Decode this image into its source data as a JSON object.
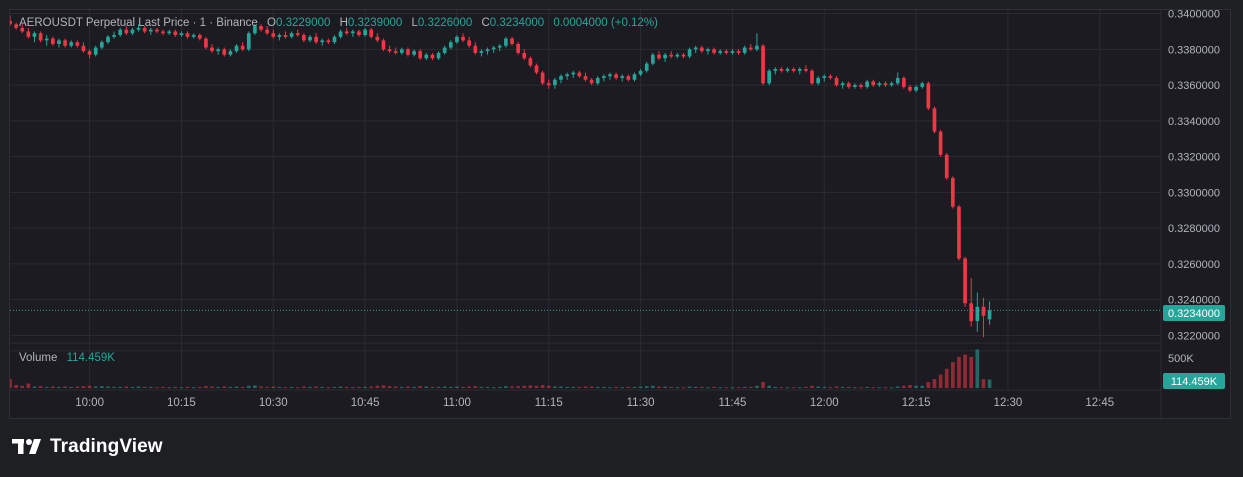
{
  "header": {
    "symbol": "AEROUSDT Perpetual Last Price · 1 · Binance",
    "o_label": "O",
    "o_value": "0.3229000",
    "h_label": "H",
    "h_value": "0.3239000",
    "l_label": "L",
    "l_value": "0.3226000",
    "c_label": "C",
    "c_value": "0.3234000",
    "change": "0.0004000 (+0.12%)"
  },
  "volume_pane": {
    "label": "Volume",
    "value": "114.459K",
    "scale_label": "500K",
    "badge": "114.459K"
  },
  "price_badge": "0.3234000",
  "branding": {
    "name": "TradingView",
    "logo": "tradingview-logo-icon"
  },
  "colors": {
    "background": "#1b1b21",
    "grid": "#2b2c33",
    "up": "#26a69a",
    "down": "#f23645",
    "text": "#b2b5be"
  },
  "chart_data": {
    "type": "candlestick",
    "interval_minutes": 1,
    "y_ticks": [
      "0.3400000",
      "0.3380000",
      "0.3360000",
      "0.3340000",
      "0.3320000",
      "0.3300000",
      "0.3280000",
      "0.3260000",
      "0.3240000",
      "0.3220000"
    ],
    "ylim": [
      0.3218,
      0.3402
    ],
    "x_ticks": [
      "10:00",
      "10:15",
      "10:30",
      "10:45",
      "11:00",
      "11:15",
      "11:30",
      "11:45",
      "12:00",
      "12:15",
      "12:30",
      "12:45"
    ],
    "xlim": [
      "09:47",
      "12:55"
    ],
    "last_price": 0.3234,
    "volume_ylim": [
      0,
      580000
    ],
    "volume_tick": 500000,
    "candles": [
      [
        "09:47",
        0.3396,
        0.3399,
        0.3393,
        0.3394,
        120000
      ],
      [
        "09:48",
        0.3394,
        0.3395,
        0.3391,
        0.3392,
        40000
      ],
      [
        "09:49",
        0.3392,
        0.3394,
        0.3389,
        0.339,
        30000
      ],
      [
        "09:50",
        0.339,
        0.3392,
        0.3386,
        0.3387,
        60000
      ],
      [
        "09:51",
        0.3387,
        0.339,
        0.3384,
        0.3389,
        20000
      ],
      [
        "09:52",
        0.3389,
        0.339,
        0.3384,
        0.3385,
        25000
      ],
      [
        "09:53",
        0.3385,
        0.3388,
        0.3382,
        0.3386,
        15000
      ],
      [
        "09:54",
        0.3386,
        0.3387,
        0.3382,
        0.3383,
        20000
      ],
      [
        "09:55",
        0.3383,
        0.3386,
        0.3381,
        0.3385,
        15000
      ],
      [
        "09:56",
        0.3385,
        0.3386,
        0.3381,
        0.3382,
        20000
      ],
      [
        "09:57",
        0.3382,
        0.3385,
        0.3381,
        0.3384,
        15000
      ],
      [
        "09:58",
        0.3384,
        0.3385,
        0.3381,
        0.3382,
        20000
      ],
      [
        "09:59",
        0.3382,
        0.3384,
        0.3378,
        0.3379,
        25000
      ],
      [
        "10:00",
        0.3379,
        0.338,
        0.3375,
        0.3377,
        30000
      ],
      [
        "10:01",
        0.3377,
        0.3382,
        0.3376,
        0.3381,
        20000
      ],
      [
        "10:02",
        0.3381,
        0.3385,
        0.338,
        0.3384,
        25000
      ],
      [
        "10:03",
        0.3384,
        0.3388,
        0.3383,
        0.3387,
        20000
      ],
      [
        "10:04",
        0.3387,
        0.339,
        0.3386,
        0.3388,
        15000
      ],
      [
        "10:05",
        0.3388,
        0.3392,
        0.3387,
        0.3391,
        15000
      ],
      [
        "10:06",
        0.3391,
        0.3393,
        0.3388,
        0.3389,
        20000
      ],
      [
        "10:07",
        0.3389,
        0.3392,
        0.3388,
        0.3391,
        15000
      ],
      [
        "10:08",
        0.3391,
        0.3394,
        0.339,
        0.3392,
        20000
      ],
      [
        "10:09",
        0.3392,
        0.3393,
        0.3389,
        0.339,
        15000
      ],
      [
        "10:10",
        0.339,
        0.3392,
        0.3388,
        0.3391,
        15000
      ],
      [
        "10:11",
        0.3391,
        0.3392,
        0.3389,
        0.339,
        10000
      ],
      [
        "10:12",
        0.339,
        0.3391,
        0.3388,
        0.3389,
        15000
      ],
      [
        "10:13",
        0.3389,
        0.3391,
        0.3388,
        0.339,
        10000
      ],
      [
        "10:14",
        0.339,
        0.3391,
        0.3387,
        0.3388,
        15000
      ],
      [
        "10:15",
        0.3388,
        0.339,
        0.3387,
        0.3389,
        10000
      ],
      [
        "10:16",
        0.3389,
        0.339,
        0.3386,
        0.3387,
        15000
      ],
      [
        "10:17",
        0.3387,
        0.3389,
        0.3386,
        0.3388,
        10000
      ],
      [
        "10:18",
        0.3388,
        0.3389,
        0.3385,
        0.3386,
        15000
      ],
      [
        "10:19",
        0.3386,
        0.3387,
        0.338,
        0.3381,
        25000
      ],
      [
        "10:20",
        0.3381,
        0.3383,
        0.3378,
        0.3379,
        20000
      ],
      [
        "10:21",
        0.3379,
        0.3381,
        0.3377,
        0.338,
        15000
      ],
      [
        "10:22",
        0.338,
        0.3381,
        0.3376,
        0.3377,
        20000
      ],
      [
        "10:23",
        0.3377,
        0.338,
        0.3376,
        0.3379,
        15000
      ],
      [
        "10:24",
        0.3379,
        0.3383,
        0.3378,
        0.3382,
        20000
      ],
      [
        "10:25",
        0.3382,
        0.3384,
        0.3379,
        0.338,
        15000
      ],
      [
        "10:26",
        0.338,
        0.339,
        0.3379,
        0.3389,
        30000
      ],
      [
        "10:27",
        0.3389,
        0.3394,
        0.3388,
        0.3393,
        35000
      ],
      [
        "10:28",
        0.3393,
        0.3394,
        0.339,
        0.3391,
        20000
      ],
      [
        "10:29",
        0.3391,
        0.3393,
        0.3388,
        0.3389,
        15000
      ],
      [
        "10:30",
        0.3389,
        0.3391,
        0.3386,
        0.3387,
        20000
      ],
      [
        "10:31",
        0.3387,
        0.3389,
        0.3385,
        0.3388,
        15000
      ],
      [
        "10:32",
        0.3388,
        0.339,
        0.3386,
        0.3387,
        10000
      ],
      [
        "10:33",
        0.3387,
        0.339,
        0.3386,
        0.3389,
        15000
      ],
      [
        "10:34",
        0.3389,
        0.3391,
        0.3387,
        0.3388,
        10000
      ],
      [
        "10:35",
        0.3388,
        0.3389,
        0.3384,
        0.3385,
        20000
      ],
      [
        "10:36",
        0.3385,
        0.3388,
        0.3384,
        0.3387,
        15000
      ],
      [
        "10:37",
        0.3387,
        0.3389,
        0.3383,
        0.3384,
        20000
      ],
      [
        "10:38",
        0.3384,
        0.3386,
        0.3382,
        0.3385,
        15000
      ],
      [
        "10:39",
        0.3385,
        0.3386,
        0.3383,
        0.3384,
        10000
      ],
      [
        "10:40",
        0.3384,
        0.3388,
        0.3383,
        0.3387,
        15000
      ],
      [
        "10:41",
        0.3387,
        0.3391,
        0.3386,
        0.339,
        20000
      ],
      [
        "10:42",
        0.339,
        0.3392,
        0.3388,
        0.3389,
        15000
      ],
      [
        "10:43",
        0.3389,
        0.3391,
        0.3387,
        0.339,
        10000
      ],
      [
        "10:44",
        0.339,
        0.3391,
        0.3387,
        0.3388,
        15000
      ],
      [
        "10:45",
        0.3388,
        0.3392,
        0.3387,
        0.3391,
        15000
      ],
      [
        "10:46",
        0.3391,
        0.3392,
        0.3386,
        0.3387,
        20000
      ],
      [
        "10:47",
        0.3387,
        0.3389,
        0.3384,
        0.3385,
        30000
      ],
      [
        "10:48",
        0.3385,
        0.3386,
        0.3379,
        0.338,
        35000
      ],
      [
        "10:49",
        0.338,
        0.3382,
        0.3378,
        0.3379,
        25000
      ],
      [
        "10:50",
        0.3379,
        0.3381,
        0.3377,
        0.3378,
        20000
      ],
      [
        "10:51",
        0.3378,
        0.3381,
        0.3377,
        0.338,
        15000
      ],
      [
        "10:52",
        0.338,
        0.3381,
        0.3376,
        0.3377,
        20000
      ],
      [
        "10:53",
        0.3377,
        0.338,
        0.3376,
        0.3379,
        15000
      ],
      [
        "10:54",
        0.3379,
        0.338,
        0.3374,
        0.3375,
        25000
      ],
      [
        "10:55",
        0.3375,
        0.3378,
        0.3374,
        0.3377,
        20000
      ],
      [
        "10:56",
        0.3377,
        0.3378,
        0.3374,
        0.3375,
        15000
      ],
      [
        "10:57",
        0.3375,
        0.3379,
        0.3374,
        0.3378,
        15000
      ],
      [
        "10:58",
        0.3378,
        0.3382,
        0.3377,
        0.3381,
        20000
      ],
      [
        "10:59",
        0.3381,
        0.3385,
        0.338,
        0.3384,
        15000
      ],
      [
        "11:00",
        0.3384,
        0.3388,
        0.3383,
        0.3387,
        20000
      ],
      [
        "11:01",
        0.3387,
        0.3389,
        0.3384,
        0.3385,
        15000
      ],
      [
        "11:02",
        0.3385,
        0.3387,
        0.3381,
        0.3382,
        20000
      ],
      [
        "11:03",
        0.3382,
        0.3384,
        0.3377,
        0.3378,
        25000
      ],
      [
        "11:04",
        0.3378,
        0.338,
        0.3376,
        0.3379,
        15000
      ],
      [
        "11:05",
        0.3379,
        0.3381,
        0.3377,
        0.338,
        15000
      ],
      [
        "11:06",
        0.338,
        0.3382,
        0.3378,
        0.3381,
        10000
      ],
      [
        "11:07",
        0.3381,
        0.3383,
        0.3379,
        0.3382,
        15000
      ],
      [
        "11:08",
        0.3382,
        0.3387,
        0.3381,
        0.3386,
        25000
      ],
      [
        "11:09",
        0.3386,
        0.3387,
        0.3382,
        0.3383,
        20000
      ],
      [
        "11:10",
        0.3383,
        0.3384,
        0.3377,
        0.3378,
        25000
      ],
      [
        "11:11",
        0.3378,
        0.338,
        0.3374,
        0.3375,
        30000
      ],
      [
        "11:12",
        0.3375,
        0.3376,
        0.337,
        0.3371,
        35000
      ],
      [
        "11:13",
        0.3371,
        0.3372,
        0.3366,
        0.3367,
        30000
      ],
      [
        "11:14",
        0.3367,
        0.3368,
        0.336,
        0.3361,
        40000
      ],
      [
        "11:15",
        0.3361,
        0.3363,
        0.3358,
        0.336,
        30000
      ],
      [
        "11:16",
        0.336,
        0.3364,
        0.3358,
        0.3363,
        20000
      ],
      [
        "11:17",
        0.3363,
        0.3366,
        0.3361,
        0.3365,
        20000
      ],
      [
        "11:18",
        0.3365,
        0.3367,
        0.3363,
        0.3366,
        15000
      ],
      [
        "11:19",
        0.3366,
        0.3368,
        0.3364,
        0.3367,
        15000
      ],
      [
        "11:20",
        0.3367,
        0.3368,
        0.3364,
        0.3365,
        15000
      ],
      [
        "11:21",
        0.3365,
        0.3367,
        0.3362,
        0.3363,
        20000
      ],
      [
        "11:22",
        0.3363,
        0.3364,
        0.336,
        0.3361,
        20000
      ],
      [
        "11:23",
        0.3361,
        0.3365,
        0.336,
        0.3364,
        15000
      ],
      [
        "11:24",
        0.3364,
        0.3366,
        0.3362,
        0.3365,
        15000
      ],
      [
        "11:25",
        0.3365,
        0.3367,
        0.3363,
        0.3366,
        10000
      ],
      [
        "11:26",
        0.3366,
        0.3367,
        0.3363,
        0.3364,
        15000
      ],
      [
        "11:27",
        0.3364,
        0.3366,
        0.3362,
        0.3365,
        10000
      ],
      [
        "11:28",
        0.3365,
        0.3366,
        0.3362,
        0.3363,
        15000
      ],
      [
        "11:29",
        0.3363,
        0.3367,
        0.3362,
        0.3366,
        15000
      ],
      [
        "11:30",
        0.3366,
        0.3369,
        0.3365,
        0.3368,
        20000
      ],
      [
        "11:31",
        0.3368,
        0.3373,
        0.3367,
        0.3372,
        25000
      ],
      [
        "11:32",
        0.3372,
        0.3378,
        0.3371,
        0.3377,
        30000
      ],
      [
        "11:33",
        0.3377,
        0.3379,
        0.3374,
        0.3375,
        20000
      ],
      [
        "11:34",
        0.3375,
        0.3378,
        0.3373,
        0.3377,
        20000
      ],
      [
        "11:35",
        0.3377,
        0.3379,
        0.3375,
        0.3376,
        15000
      ],
      [
        "11:36",
        0.3376,
        0.3378,
        0.3375,
        0.3377,
        10000
      ],
      [
        "11:37",
        0.3377,
        0.3378,
        0.3375,
        0.3376,
        10000
      ],
      [
        "11:38",
        0.3376,
        0.3381,
        0.3375,
        0.338,
        20000
      ],
      [
        "11:39",
        0.338,
        0.3382,
        0.3378,
        0.3381,
        15000
      ],
      [
        "11:40",
        0.3381,
        0.3382,
        0.3378,
        0.3379,
        15000
      ],
      [
        "11:41",
        0.3379,
        0.3381,
        0.3377,
        0.338,
        10000
      ],
      [
        "11:42",
        0.338,
        0.3381,
        0.3377,
        0.3378,
        15000
      ],
      [
        "11:43",
        0.3378,
        0.338,
        0.3377,
        0.3379,
        10000
      ],
      [
        "11:44",
        0.3379,
        0.338,
        0.3377,
        0.3378,
        10000
      ],
      [
        "11:45",
        0.3378,
        0.338,
        0.3377,
        0.3379,
        10000
      ],
      [
        "11:46",
        0.3379,
        0.338,
        0.3377,
        0.3378,
        10000
      ],
      [
        "11:47",
        0.3378,
        0.3382,
        0.3377,
        0.3381,
        15000
      ],
      [
        "11:48",
        0.3381,
        0.3383,
        0.3379,
        0.338,
        15000
      ],
      [
        "11:49",
        0.338,
        0.3389,
        0.3379,
        0.3382,
        30000
      ],
      [
        "11:50",
        0.3382,
        0.3383,
        0.336,
        0.3361,
        80000
      ],
      [
        "11:51",
        0.3361,
        0.3369,
        0.336,
        0.3368,
        30000
      ],
      [
        "11:52",
        0.3368,
        0.337,
        0.3366,
        0.3369,
        15000
      ],
      [
        "11:53",
        0.3369,
        0.337,
        0.3367,
        0.3368,
        10000
      ],
      [
        "11:54",
        0.3368,
        0.337,
        0.3367,
        0.3369,
        10000
      ],
      [
        "11:55",
        0.3369,
        0.337,
        0.3367,
        0.3368,
        10000
      ],
      [
        "11:56",
        0.3368,
        0.337,
        0.3366,
        0.3369,
        10000
      ],
      [
        "11:57",
        0.3369,
        0.3371,
        0.3367,
        0.3368,
        15000
      ],
      [
        "11:58",
        0.3368,
        0.3369,
        0.336,
        0.3361,
        30000
      ],
      [
        "11:59",
        0.3361,
        0.3365,
        0.336,
        0.3364,
        20000
      ],
      [
        "12:00",
        0.3364,
        0.3366,
        0.3362,
        0.3365,
        15000
      ],
      [
        "12:01",
        0.3365,
        0.3366,
        0.3363,
        0.3364,
        10000
      ],
      [
        "12:02",
        0.3364,
        0.3365,
        0.3359,
        0.336,
        20000
      ],
      [
        "12:03",
        0.336,
        0.3362,
        0.3358,
        0.3361,
        15000
      ],
      [
        "12:04",
        0.3361,
        0.3362,
        0.3358,
        0.3359,
        15000
      ],
      [
        "12:05",
        0.3359,
        0.3361,
        0.3358,
        0.336,
        10000
      ],
      [
        "12:06",
        0.336,
        0.3361,
        0.3358,
        0.3359,
        10000
      ],
      [
        "12:07",
        0.3359,
        0.3363,
        0.3358,
        0.3362,
        15000
      ],
      [
        "12:08",
        0.3362,
        0.3363,
        0.3359,
        0.336,
        10000
      ],
      [
        "12:09",
        0.336,
        0.3362,
        0.3359,
        0.3361,
        10000
      ],
      [
        "12:10",
        0.3361,
        0.3362,
        0.3359,
        0.336,
        10000
      ],
      [
        "12:11",
        0.336,
        0.3362,
        0.3359,
        0.3361,
        10000
      ],
      [
        "12:12",
        0.3361,
        0.3367,
        0.336,
        0.3364,
        20000
      ],
      [
        "12:13",
        0.3364,
        0.3365,
        0.3358,
        0.3359,
        30000
      ],
      [
        "12:14",
        0.3359,
        0.336,
        0.3356,
        0.3357,
        40000
      ],
      [
        "12:15",
        0.3357,
        0.336,
        0.3356,
        0.3359,
        30000
      ],
      [
        "12:16",
        0.3359,
        0.3362,
        0.3358,
        0.3361,
        30000
      ],
      [
        "12:17",
        0.3361,
        0.3362,
        0.3346,
        0.3347,
        80000
      ],
      [
        "12:18",
        0.3347,
        0.3348,
        0.3333,
        0.3334,
        120000
      ],
      [
        "12:19",
        0.3334,
        0.3335,
        0.332,
        0.3321,
        180000
      ],
      [
        "12:20",
        0.3321,
        0.3322,
        0.3307,
        0.3308,
        260000
      ],
      [
        "12:21",
        0.3308,
        0.3309,
        0.3291,
        0.3292,
        350000
      ],
      [
        "12:22",
        0.3292,
        0.3293,
        0.3262,
        0.3263,
        420000
      ],
      [
        "12:23",
        0.3263,
        0.3264,
        0.3236,
        0.3238,
        450000
      ],
      [
        "12:24",
        0.3238,
        0.3252,
        0.3225,
        0.3228,
        420000
      ],
      [
        "12:25",
        0.3228,
        0.3244,
        0.3222,
        0.3236,
        520000
      ],
      [
        "12:26",
        0.3236,
        0.3241,
        0.3219,
        0.3231,
        120000
      ],
      [
        "12:27",
        0.3229,
        0.3239,
        0.3226,
        0.3234,
        114459
      ]
    ]
  }
}
